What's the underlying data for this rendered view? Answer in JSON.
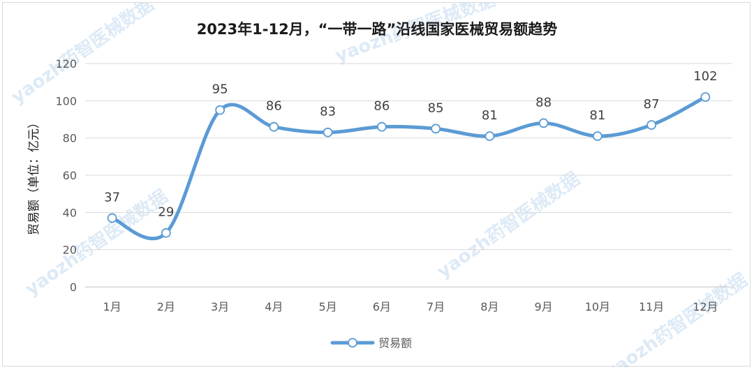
{
  "chart_data": {
    "type": "line",
    "title": "2023年1-12月，“一带一路”沿线国家医械贸易额趋势",
    "ylabel": "贸易额（单位：亿元）",
    "xlabel": "",
    "categories": [
      "1月",
      "2月",
      "3月",
      "4月",
      "5月",
      "6月",
      "7月",
      "8月",
      "9月",
      "10月",
      "11月",
      "12月"
    ],
    "series": [
      {
        "name": "贸易额",
        "values": [
          37,
          29,
          95,
          86,
          83,
          86,
          85,
          81,
          88,
          81,
          87,
          102
        ],
        "color": "#5b9bd5"
      }
    ],
    "ylim": [
      0,
      120
    ],
    "yticks": [
      0,
      20,
      40,
      60,
      80,
      100,
      120
    ],
    "grid": true,
    "smooth": true,
    "data_labels": true,
    "legend_position": "bottom",
    "watermark": "yaozh药智医械数据"
  }
}
